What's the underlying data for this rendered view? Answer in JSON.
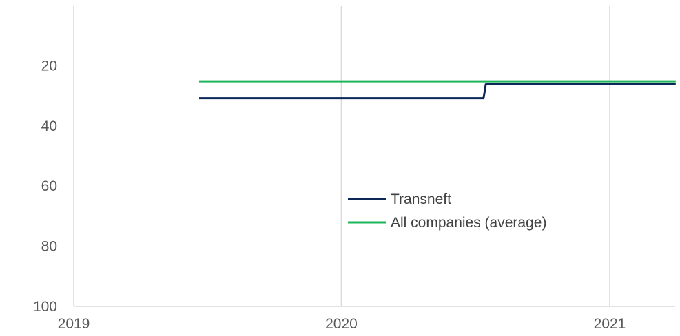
{
  "chart_data": {
    "type": "line",
    "title": "",
    "xlabel": "",
    "ylabel": "",
    "x_axis": {
      "min": "2019-01-01",
      "max": "2021-04-01",
      "ticks": [
        {
          "label": "2019",
          "value": "2019-01-01"
        },
        {
          "label": "2020",
          "value": "2020-01-01"
        },
        {
          "label": "2021",
          "value": "2021-01-01"
        }
      ],
      "grid": true
    },
    "y_axis": {
      "min": 0,
      "max": 100,
      "inverted": true,
      "ticks": [
        20,
        40,
        60,
        80,
        100
      ],
      "grid": false
    },
    "legend": {
      "placement": "center-right"
    },
    "series": [
      {
        "name": "Transneft",
        "color": "#0d2757",
        "step": true,
        "points": [
          {
            "x": "2019-06-21",
            "y": 30.8
          },
          {
            "x": "2020-07-13",
            "y": 30.8
          },
          {
            "x": "2020-07-16",
            "y": 26.2
          },
          {
            "x": "2021-04-01",
            "y": 26.2
          }
        ]
      },
      {
        "name": "All companies (average)",
        "color": "#1db55a",
        "step": false,
        "points": [
          {
            "x": "2019-06-21",
            "y": 25.2
          },
          {
            "x": "2021-04-01",
            "y": 25.2
          }
        ]
      }
    ]
  }
}
